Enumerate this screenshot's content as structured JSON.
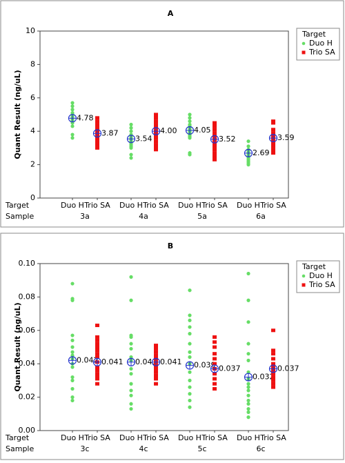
{
  "chart_data": [
    {
      "type": "individual-value",
      "title": "A",
      "ylabel": "Quant Result (ng/uL)",
      "row_labels": [
        "Target",
        "Sample"
      ],
      "samples": [
        "3a",
        "4a",
        "5a",
        "6a"
      ],
      "legend_title": "Target",
      "ylim": [
        0,
        10
      ],
      "yticks": [
        0,
        2,
        4,
        6,
        8,
        10
      ],
      "series": [
        {
          "name": "Duo H",
          "color": "#66dd66",
          "marker": "circle",
          "values": [
            [
              5.7,
              5.5,
              5.3,
              5.1,
              5.0,
              4.9,
              4.8,
              4.7,
              4.6,
              4.5,
              4.3,
              3.8,
              3.6
            ],
            [
              4.4,
              4.2,
              4.0,
              3.8,
              3.7,
              3.6,
              3.5,
              3.4,
              3.3,
              3.2,
              3.1,
              3.0,
              2.6,
              2.4
            ],
            [
              5.0,
              4.8,
              4.6,
              4.4,
              4.3,
              4.2,
              4.1,
              4.0,
              3.9,
              3.8,
              3.7,
              3.6,
              2.7,
              2.6
            ],
            [
              3.4,
              3.1,
              2.9,
              2.8,
              2.7,
              2.6,
              2.5,
              2.4,
              2.3,
              2.2,
              2.1,
              2.0
            ]
          ],
          "means": [
            4.78,
            3.54,
            4.05,
            2.69
          ],
          "mean_labels": [
            "4.78",
            "3.54",
            "4.05",
            "2.69"
          ]
        },
        {
          "name": "Trio SA",
          "color": "#ee1111",
          "marker": "square",
          "values": [
            [
              4.8,
              4.6,
              4.4,
              4.2,
              4.1,
              4.0,
              3.9,
              3.8,
              3.7,
              3.6,
              3.5,
              3.4,
              3.3,
              3.2,
              3.1,
              3.0
            ],
            [
              5.0,
              4.8,
              4.6,
              4.4,
              4.2,
              4.0,
              3.9,
              3.8,
              3.6,
              3.4,
              3.2,
              3.0,
              2.9
            ],
            [
              4.5,
              4.3,
              4.1,
              3.9,
              3.7,
              3.5,
              3.3,
              3.1,
              2.9,
              2.7,
              2.5,
              2.4,
              2.3
            ],
            [
              4.6,
              4.5,
              4.1,
              3.9,
              3.7,
              3.5,
              3.3,
              3.1,
              2.9,
              2.8,
              2.7
            ]
          ],
          "means": [
            3.87,
            4,
            3.52,
            3.59
          ],
          "mean_labels": [
            "3.87",
            "4.00",
            "3.52",
            "3.59"
          ]
        }
      ]
    },
    {
      "type": "individual-value",
      "title": "B",
      "ylabel": "Quant Result (ng/uL)",
      "row_labels": [
        "Target",
        "Sample"
      ],
      "samples": [
        "3c",
        "4c",
        "5c",
        "6c"
      ],
      "legend_title": "Target",
      "ylim": [
        0,
        0.1
      ],
      "yticks": [
        {
          "value": 0,
          "label": "0.00"
        },
        {
          "value": 0.02,
          "label": "0.02"
        },
        {
          "value": 0.04,
          "label": "0.04"
        },
        {
          "value": 0.06,
          "label": "0.06"
        },
        {
          "value": 0.08,
          "label": "0.08"
        },
        {
          "value": 0.1,
          "label": "0.10"
        }
      ],
      "series": [
        {
          "name": "Duo H",
          "color": "#66dd66",
          "marker": "circle",
          "values": [
            [
              0.088,
              0.079,
              0.078,
              0.057,
              0.054,
              0.05,
              0.047,
              0.045,
              0.043,
              0.04,
              0.038,
              0.032,
              0.03,
              0.025,
              0.02,
              0.018
            ],
            [
              0.092,
              0.078,
              0.057,
              0.056,
              0.052,
              0.049,
              0.044,
              0.042,
              0.037,
              0.034,
              0.028,
              0.024,
              0.021,
              0.016,
              0.013
            ],
            [
              0.084,
              0.069,
              0.066,
              0.062,
              0.058,
              0.052,
              0.047,
              0.044,
              0.04,
              0.035,
              0.03,
              0.026,
              0.022,
              0.018,
              0.014
            ],
            [
              0.094,
              0.078,
              0.065,
              0.052,
              0.046,
              0.042,
              0.035,
              0.031,
              0.028,
              0.026,
              0.024,
              0.021,
              0.018,
              0.016,
              0.013,
              0.011,
              0.008
            ]
          ],
          "means": [
            0.042,
            0.041,
            0.039,
            0.032
          ]
        },
        {
          "name": "Trio SA",
          "color": "#ee1111",
          "marker": "square",
          "values": [
            [
              0.063,
              0.056,
              0.054,
              0.052,
              0.05,
              0.048,
              0.046,
              0.044,
              0.041,
              0.038,
              0.036,
              0.034,
              0.033,
              0.031,
              0.028
            ],
            [
              0.051,
              0.049,
              0.047,
              0.045,
              0.043,
              0.041,
              0.039,
              0.037,
              0.035,
              0.033,
              0.031,
              0.028
            ],
            [
              0.056,
              0.053,
              0.05,
              0.046,
              0.043,
              0.04,
              0.037,
              0.034,
              0.031,
              0.028,
              0.025
            ],
            [
              0.06,
              0.048,
              0.046,
              0.043,
              0.04,
              0.038,
              0.036,
              0.034,
              0.032,
              0.03,
              0.028,
              0.026
            ]
          ],
          "means": [
            0.041,
            0.041,
            0.037,
            0.037
          ]
        }
      ]
    }
  ]
}
